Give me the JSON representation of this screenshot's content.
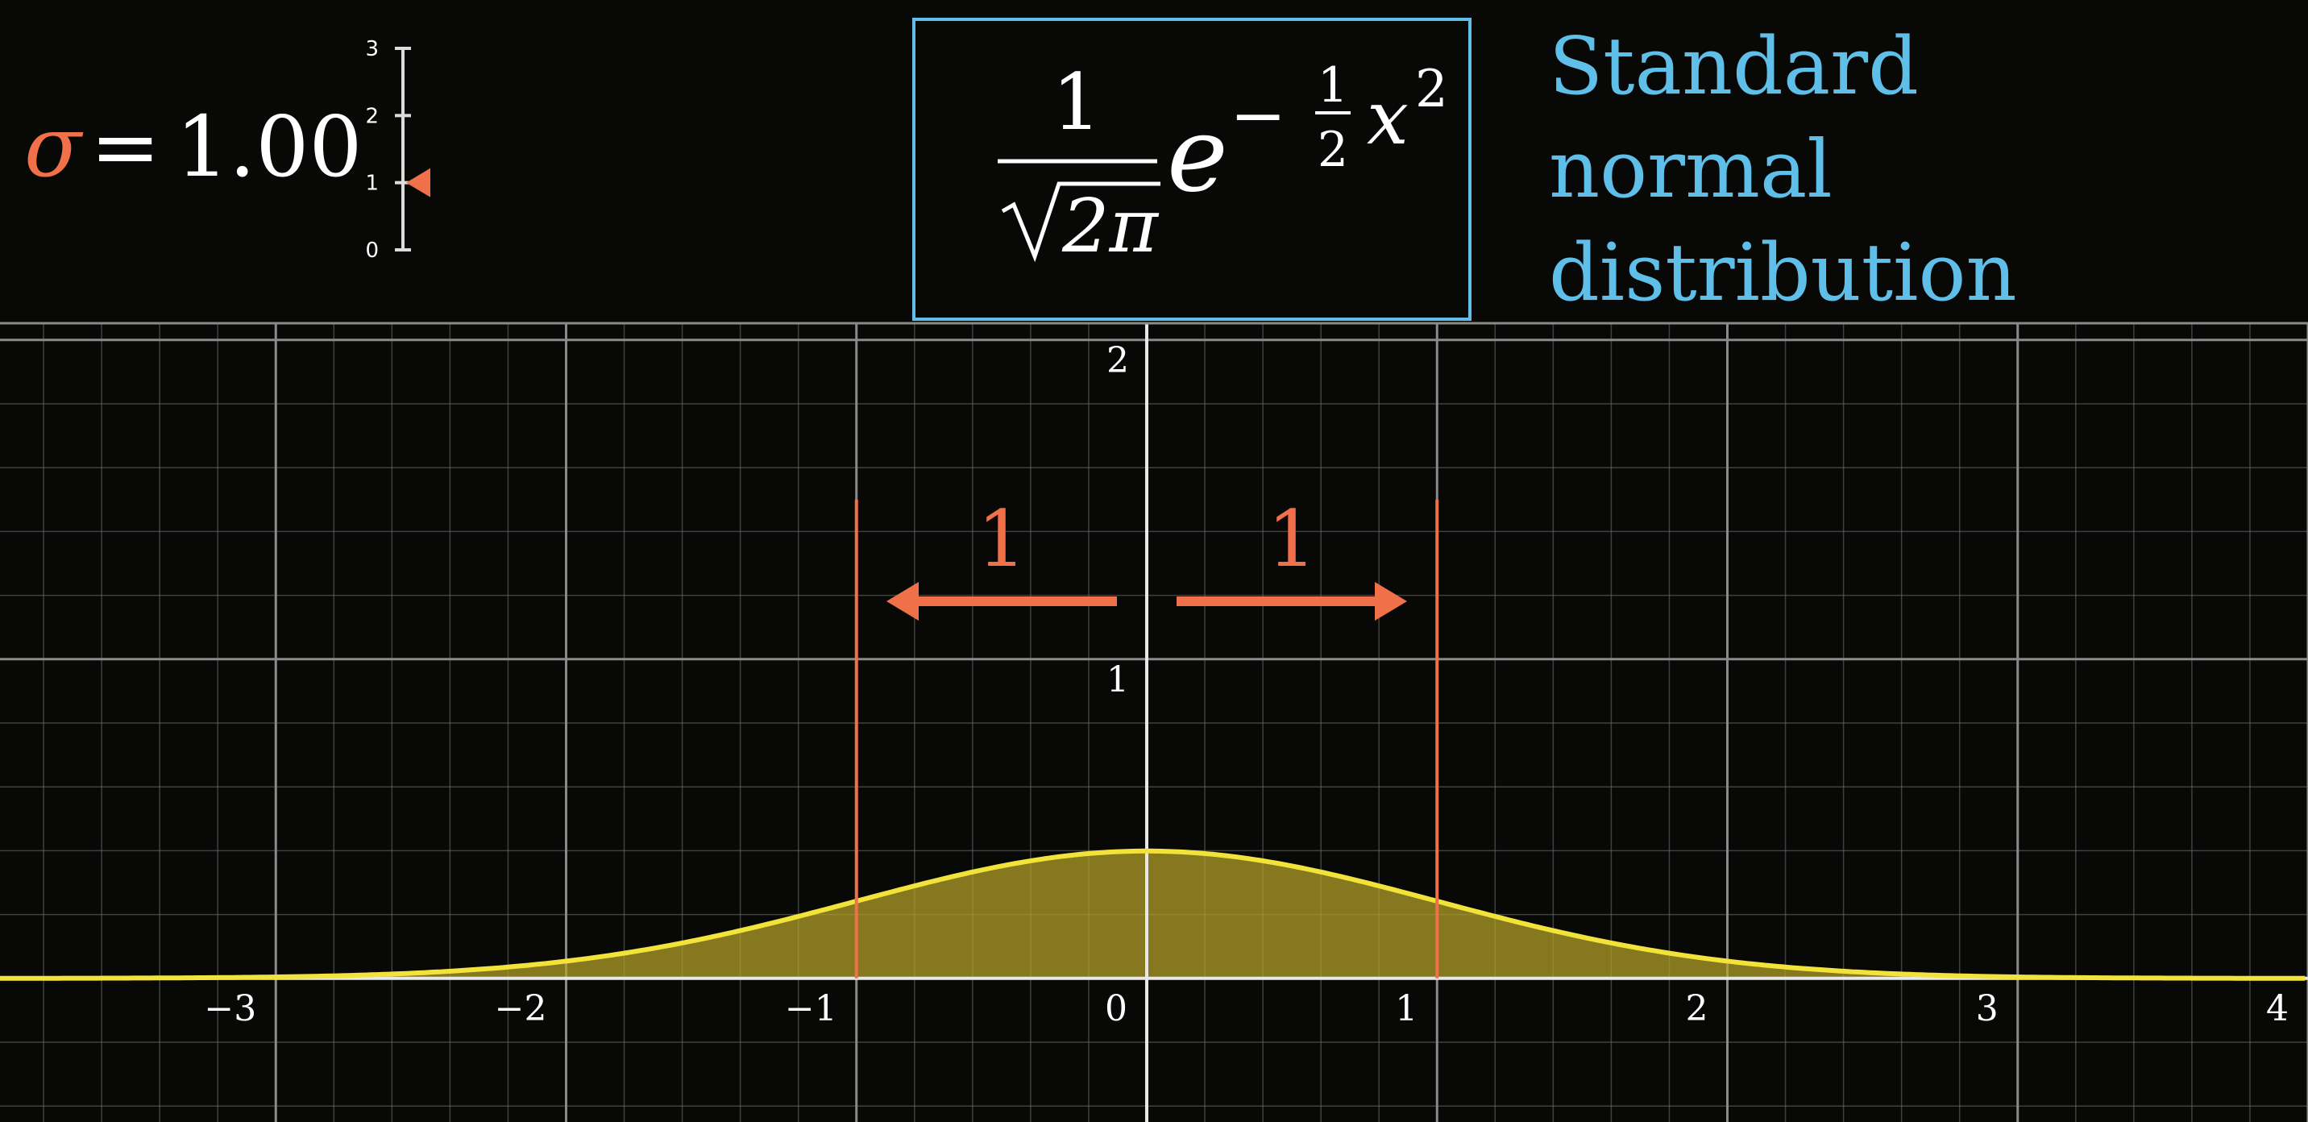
{
  "sigma_display": {
    "symbol": "σ",
    "equals": "=",
    "value": "1.00",
    "slider": {
      "ticks": [
        "0",
        "1",
        "2",
        "3"
      ],
      "min": 0,
      "max": 3,
      "current": 1.0
    }
  },
  "formula": {
    "numerator": "1",
    "sqrt_content": "2π",
    "base": "e",
    "exp_sign": "−",
    "exp_frac_num": "1",
    "exp_frac_den": "2",
    "exp_var": "x",
    "exp_power": "2"
  },
  "caption": [
    "Standard",
    "normal",
    "distribution"
  ],
  "brace_annotations": {
    "left_label": "1",
    "right_label": "1"
  },
  "colors": {
    "background": "#080807",
    "accent_orange": "#f0704a",
    "caption_blue": "#5fbfe8",
    "curve_yellow": "#f2e33a",
    "fill_yellow": "#b5a42a",
    "grid": "#6e6e6e",
    "formula_box": "#5fbfe8"
  },
  "chart_data": {
    "type": "area",
    "function": "standard normal density",
    "sigma": 1.0,
    "mu": 0,
    "xlim": [
      -3.95,
      4.0
    ],
    "ylim": [
      -0.45,
      2.05
    ],
    "x_tick_labels": [
      "−3",
      "−2",
      "−1",
      "0",
      "1",
      "2",
      "3",
      "4"
    ],
    "x_ticks": [
      -3,
      -2,
      -1,
      0,
      1,
      2,
      3,
      4
    ],
    "y_tick_labels": [
      "1",
      "2"
    ],
    "y_ticks": [
      1,
      2
    ],
    "grid": true,
    "x": [
      -4,
      -3.5,
      -3,
      -2.5,
      -2,
      -1.5,
      -1,
      -0.5,
      0,
      0.5,
      1,
      1.5,
      2,
      2.5,
      3,
      3.5,
      4
    ],
    "y": [
      0.0001,
      0.0009,
      0.0044,
      0.0175,
      0.054,
      0.1295,
      0.242,
      0.3521,
      0.3989,
      0.3521,
      0.242,
      0.1295,
      0.054,
      0.0175,
      0.0044,
      0.0009,
      0.0001
    ],
    "vertical_markers": [
      -1,
      1
    ]
  }
}
